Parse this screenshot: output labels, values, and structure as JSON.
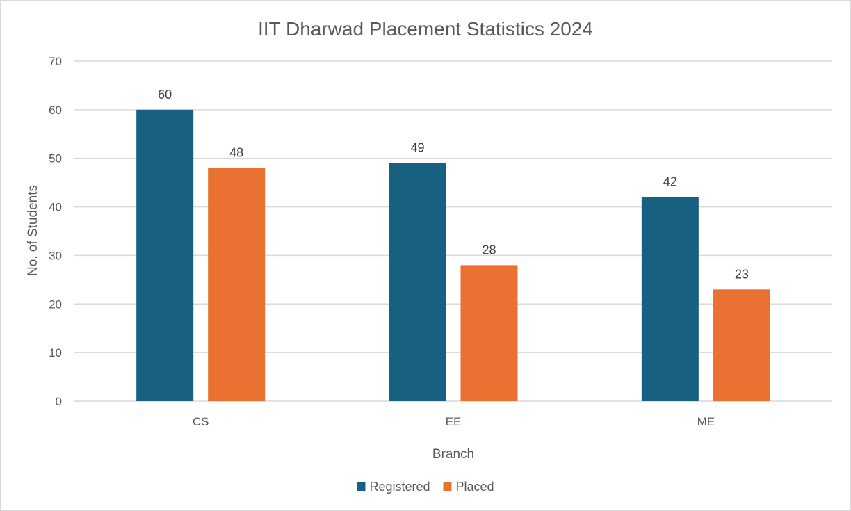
{
  "chart_data": {
    "type": "bar",
    "title": "IIT Dharwad Placement Statistics 2024",
    "xlabel": "Branch",
    "ylabel": "No. of Students",
    "categories": [
      "CS",
      "EE",
      "ME"
    ],
    "series": [
      {
        "name": "Registered",
        "values": [
          60,
          49,
          42
        ],
        "color": "#17607f"
      },
      {
        "name": "Placed",
        "values": [
          48,
          28,
          23
        ],
        "color": "#e97132"
      }
    ],
    "ylim": [
      0,
      70
    ],
    "yticks": [
      0,
      10,
      20,
      30,
      40,
      50,
      60,
      70
    ],
    "grid": true,
    "legend": "bottom"
  }
}
